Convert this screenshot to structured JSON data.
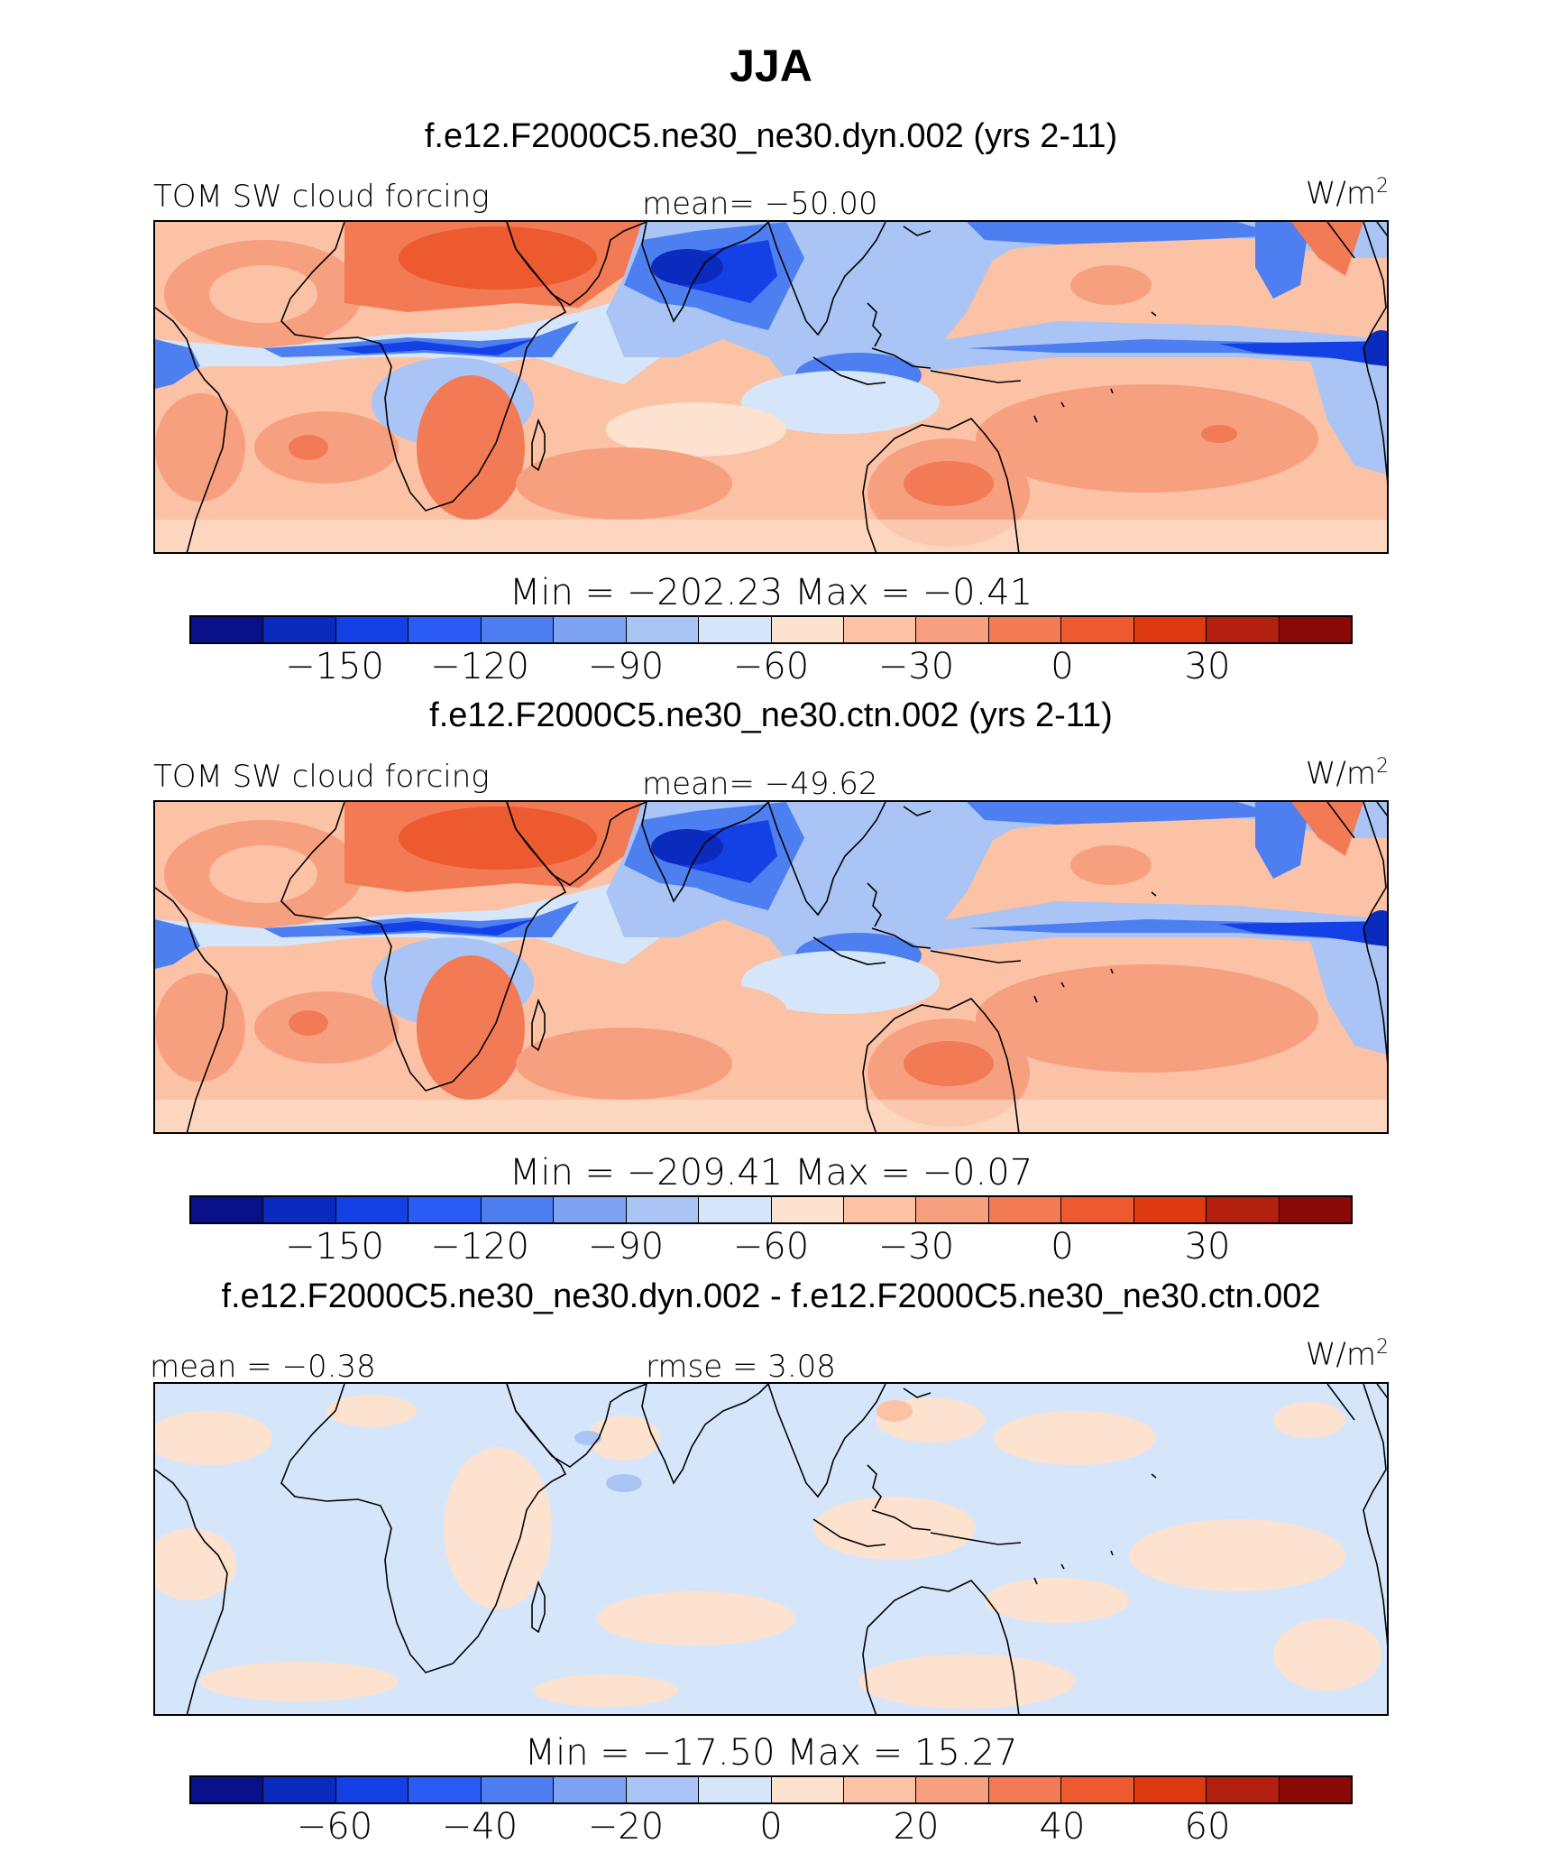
{
  "title": "JJA",
  "units_base": "W/m",
  "units_exp": "2",
  "palette": [
    "#08108a",
    "#0a2bbd",
    "#1441e6",
    "#2a5cf5",
    "#4d7ff0",
    "#7ea2f2",
    "#a9c4f5",
    "#d6e6fa",
    "#fde2cf",
    "#fbc2a6",
    "#f7a07f",
    "#f27a55",
    "#ee5a30",
    "#dd3a12",
    "#b32010",
    "#8a0a08"
  ],
  "panels": [
    {
      "title": "f.e12.F2000C5.ne30_ne30.dyn.002 (yrs 2-11)",
      "left_label": "TOM SW cloud forcing",
      "center_label": "mean=  −50.00",
      "cb_label": "Min  =  −202.23  Max  =    −0.41",
      "ticks": [
        "−150",
        "−120",
        "−90",
        "−60",
        "−30",
        "0",
        "30"
      ]
    },
    {
      "title": "f.e12.F2000C5.ne30_ne30.ctn.002 (yrs 2-11)",
      "left_label": "TOM SW cloud forcing",
      "center_label": "mean=  −49.62",
      "cb_label": "Min  =  −209.41  Max  =    −0.07",
      "ticks": [
        "−150",
        "−120",
        "−90",
        "−60",
        "−30",
        "0",
        "30"
      ]
    },
    {
      "title": "f.e12.F2000C5.ne30_ne30.dyn.002 - f.e12.F2000C5.ne30_ne30.ctn.002",
      "left_label": "mean  =    −0.38",
      "center_label": "rmse  =       3.08",
      "cb_label": "Min  =  −17.50  Max  =    15.27",
      "ticks": [
        "−60",
        "−40",
        "−20",
        "0",
        "20",
        "40",
        "60"
      ]
    }
  ]
}
